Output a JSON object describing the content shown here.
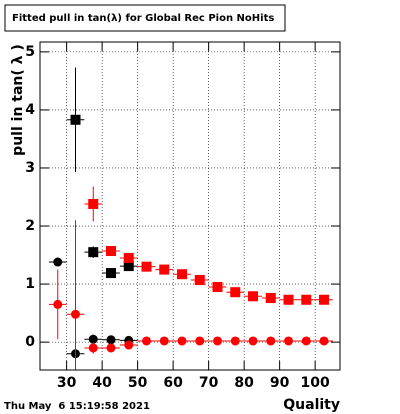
{
  "chart_data": {
    "type": "scatter",
    "title": "Fitted pull in tan(λ) for Global Rec Pion NoHits",
    "y_label": "pull in tan( λ )",
    "x_label": "Quality",
    "timestamp": "Thu May  6 15:19:58 2021",
    "xlim": [
      22.5,
      107
    ],
    "ylim": [
      -0.48,
      5.17
    ],
    "xticks": [
      30,
      40,
      50,
      60,
      70,
      80,
      90,
      100
    ],
    "yticks": [
      0,
      1,
      2,
      3,
      4,
      5
    ],
    "grid": true,
    "series": [
      {
        "marker": "circle",
        "color": "#000000",
        "xerr": 2.5,
        "x": [
          27.5,
          32.5,
          37.5,
          42.5,
          47.5
        ],
        "values": [
          1.38,
          -0.2,
          0.05,
          0.04,
          0.03
        ],
        "errors": [
          0.03,
          0.03,
          0.08,
          0.03,
          0.03
        ]
      },
      {
        "marker": "square",
        "color": "#000000",
        "xerr": 2.5,
        "x": [
          32.5,
          37.5,
          42.5,
          47.5
        ],
        "values": [
          3.83,
          1.55,
          1.19,
          1.31
        ],
        "errors": [
          0.9,
          0.1,
          0.05,
          0.04
        ]
      },
      {
        "marker": "circle",
        "color": "#ff0000",
        "xerr": 2.5,
        "x": [
          27.5,
          32.5,
          37.5,
          42.5,
          47.5,
          52.5,
          57.5,
          62.5,
          67.5,
          72.5,
          77.5,
          82.5,
          87.5,
          92.5,
          97.5,
          102.5
        ],
        "values": [
          0.65,
          0.48,
          -0.1,
          -0.1,
          -0.05,
          0.02,
          0.02,
          0.02,
          0.02,
          0.02,
          0.02,
          0.02,
          0.02,
          0.02,
          0.02,
          0.02
        ],
        "errors": [
          0.6,
          1.62,
          0.1,
          0.04,
          0.03,
          0.02,
          0.02,
          0.02,
          0.02,
          0.02,
          0.02,
          0.02,
          0.02,
          0.02,
          0.02,
          0.02
        ]
      },
      {
        "marker": "square",
        "color": "#ff0000",
        "xerr": 2.5,
        "x": [
          37.5,
          42.5,
          47.5,
          52.5,
          57.5,
          62.5,
          67.5,
          72.5,
          77.5,
          82.5,
          87.5,
          92.5,
          97.5,
          102.5
        ],
        "values": [
          2.38,
          1.57,
          1.45,
          1.3,
          1.25,
          1.17,
          1.07,
          0.95,
          0.86,
          0.79,
          0.76,
          0.73,
          0.73,
          0.73
        ],
        "errors": [
          0.3,
          0.06,
          0.05,
          0.04,
          0.03,
          0.03,
          0.03,
          0.03,
          0.02,
          0.02,
          0.02,
          0.02,
          0.02,
          0.02
        ]
      }
    ]
  }
}
